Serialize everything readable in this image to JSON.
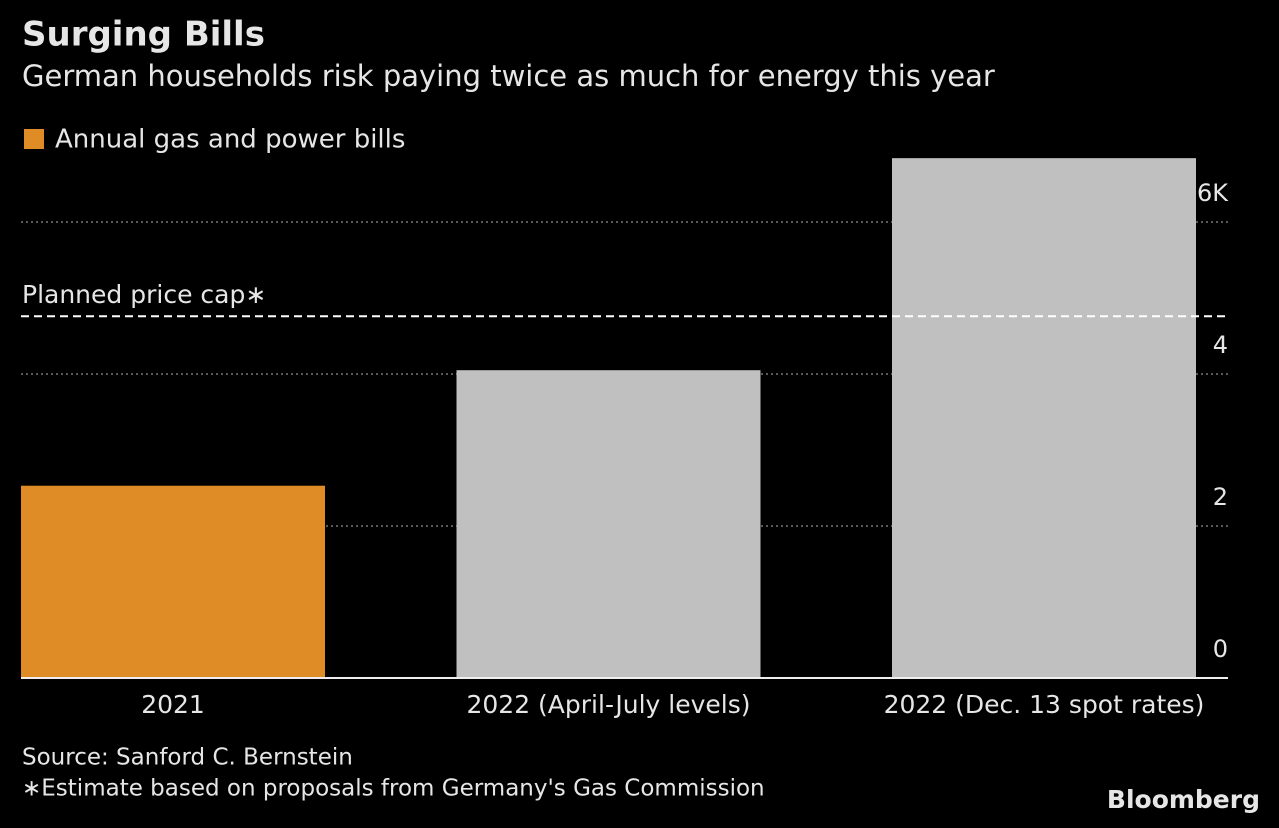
{
  "chart_data": {
    "type": "bar",
    "title": "Surging Bills",
    "subtitle": "German households risk paying twice as much for energy this year",
    "categories": [
      "2021",
      "2022 (April-July levels)",
      "2022 (Dec. 13 spot rates)"
    ],
    "series": [
      {
        "name": "Annual gas and power bills",
        "color": "#e08c26",
        "values": [
          2.53,
          4.05,
          6.84
        ]
      }
    ],
    "bar_colors": [
      "#e08c26",
      "#c0c0c0",
      "#c0c0c0"
    ],
    "ylim": [
      0,
      7
    ],
    "yticks": [
      0,
      2,
      4,
      {
        "value": 6,
        "label": "€ 6K"
      }
    ],
    "grid": true,
    "reference_line": {
      "label": "Planned price cap∗",
      "value": 4.76
    },
    "source": "Source: Sanford C. Bernstein",
    "note": "∗Estimate based on proposals from Germany's Gas Commission",
    "logo": "Bloomberg"
  }
}
